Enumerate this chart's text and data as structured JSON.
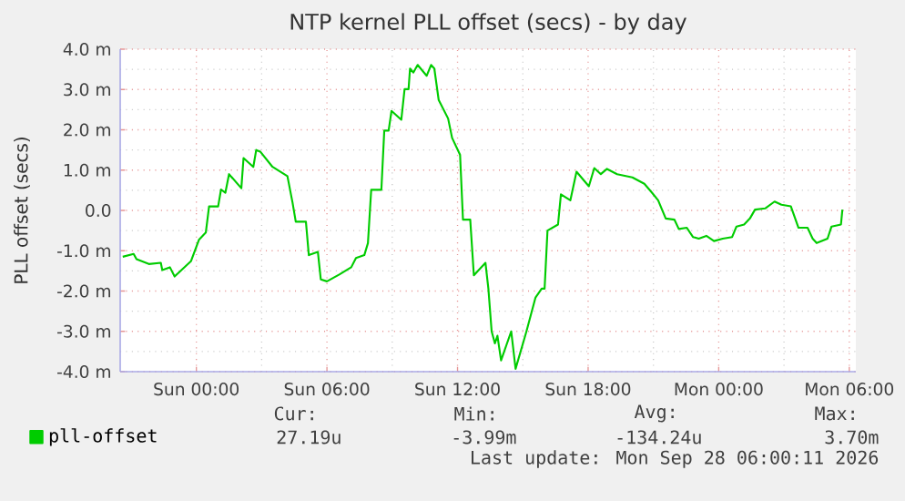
{
  "chart_data": {
    "type": "line",
    "title": "NTP kernel PLL offset (secs) - by day",
    "ylabel": "PLL offset (secs)",
    "xlim": [
      "2026-09-26T20:30",
      "2026-09-28T06:18"
    ],
    "ylim": [
      -4.0,
      4.0
    ],
    "xticks": [
      {
        "value": "2026-09-27T00:00",
        "label": "Sun 00:00"
      },
      {
        "value": "2026-09-27T06:00",
        "label": "Sun 06:00"
      },
      {
        "value": "2026-09-27T12:00",
        "label": "Sun 12:00"
      },
      {
        "value": "2026-09-27T18:00",
        "label": "Sun 18:00"
      },
      {
        "value": "2026-09-28T00:00",
        "label": "Mon 00:00"
      },
      {
        "value": "2026-09-28T06:00",
        "label": "Mon 06:00"
      }
    ],
    "yticks": [
      {
        "value": -4,
        "label": "-4.0 m"
      },
      {
        "value": -3,
        "label": "-3.0 m"
      },
      {
        "value": -2,
        "label": "-2.0 m"
      },
      {
        "value": -1,
        "label": "-1.0 m"
      },
      {
        "value": 0,
        "label": "0.0"
      },
      {
        "value": 1,
        "label": "1.0 m"
      },
      {
        "value": 2,
        "label": "2.0 m"
      },
      {
        "value": 3,
        "label": "3.0 m"
      },
      {
        "value": 4,
        "label": "4.0 m"
      }
    ],
    "grid": true,
    "legend": "bottom",
    "marker": "none",
    "line_style": "solid",
    "series": [
      {
        "name": "pll-offset",
        "color": "#00cc00",
        "x": [
          "2026-09-26T20:37",
          "2026-09-26T21:07",
          "2026-09-26T21:15",
          "2026-09-26T21:49",
          "2026-09-26T22:22",
          "2026-09-26T22:26",
          "2026-09-26T22:47",
          "2026-09-26T23:00",
          "2026-09-26T23:45",
          "2026-09-27T00:07",
          "2026-09-27T00:26",
          "2026-09-27T00:35",
          "2026-09-27T01:00",
          "2026-09-27T01:08",
          "2026-09-27T01:20",
          "2026-09-27T01:30",
          "2026-09-27T02:04",
          "2026-09-27T02:10",
          "2026-09-27T02:37",
          "2026-09-27T02:45",
          "2026-09-27T02:56",
          "2026-09-27T03:30",
          "2026-09-27T04:11",
          "2026-09-27T04:25",
          "2026-09-27T04:34",
          "2026-09-27T05:02",
          "2026-09-27T05:10",
          "2026-09-27T05:35",
          "2026-09-27T05:43",
          "2026-09-27T06:00",
          "2026-09-27T06:34",
          "2026-09-27T07:07",
          "2026-09-27T07:20",
          "2026-09-27T07:43",
          "2026-09-27T07:53",
          "2026-09-27T08:02",
          "2026-09-27T08:30",
          "2026-09-27T08:38",
          "2026-09-27T08:50",
          "2026-09-27T08:58",
          "2026-09-27T09:25",
          "2026-09-27T09:34",
          "2026-09-27T09:45",
          "2026-09-27T09:49",
          "2026-09-27T09:58",
          "2026-09-27T10:10",
          "2026-09-27T10:35",
          "2026-09-27T10:47",
          "2026-09-27T10:56",
          "2026-09-27T11:08",
          "2026-09-27T11:34",
          "2026-09-27T11:45",
          "2026-09-27T12:07",
          "2026-09-27T12:15",
          "2026-09-27T12:35",
          "2026-09-27T12:45",
          "2026-09-27T13:17",
          "2026-09-27T13:25",
          "2026-09-27T13:34",
          "2026-09-27T13:43",
          "2026-09-27T13:50",
          "2026-09-27T14:00",
          "2026-09-27T14:28",
          "2026-09-27T14:40",
          "2026-09-27T15:10",
          "2026-09-27T15:35",
          "2026-09-27T15:52",
          "2026-09-27T16:00",
          "2026-09-27T16:08",
          "2026-09-27T16:37",
          "2026-09-27T16:45",
          "2026-09-27T17:11",
          "2026-09-27T17:28",
          "2026-09-27T18:02",
          "2026-09-27T18:17",
          "2026-09-27T18:35",
          "2026-09-27T18:52",
          "2026-09-27T19:20",
          "2026-09-27T20:02",
          "2026-09-27T20:35",
          "2026-09-27T20:56",
          "2026-09-27T21:13",
          "2026-09-27T21:34",
          "2026-09-27T21:58",
          "2026-09-27T22:10",
          "2026-09-27T22:32",
          "2026-09-27T22:49",
          "2026-09-27T23:05",
          "2026-09-27T23:26",
          "2026-09-27T23:47",
          "2026-09-28T00:11",
          "2026-09-28T00:37",
          "2026-09-28T00:49",
          "2026-09-28T01:10",
          "2026-09-28T01:26",
          "2026-09-28T01:40",
          "2026-09-28T02:08",
          "2026-09-28T02:34",
          "2026-09-28T02:53",
          "2026-09-28T03:19",
          "2026-09-28T03:40",
          "2026-09-28T04:05",
          "2026-09-28T04:19",
          "2026-09-28T04:30",
          "2026-09-28T05:00",
          "2026-09-28T05:11",
          "2026-09-28T05:37",
          "2026-09-28T05:41"
        ],
        "values": [
          -1.15,
          -1.08,
          -1.21,
          -1.33,
          -1.3,
          -1.48,
          -1.41,
          -1.64,
          -1.26,
          -0.73,
          -0.55,
          0.1,
          0.1,
          0.52,
          0.44,
          0.9,
          0.55,
          1.3,
          1.08,
          1.5,
          1.46,
          1.08,
          0.85,
          0.2,
          -0.28,
          -0.28,
          -1.11,
          -1.03,
          -1.71,
          -1.76,
          -1.59,
          -1.41,
          -1.18,
          -1.11,
          -0.81,
          0.51,
          0.51,
          1.98,
          1.98,
          2.47,
          2.25,
          3.01,
          3.01,
          3.52,
          3.42,
          3.61,
          3.34,
          3.61,
          3.52,
          2.74,
          2.28,
          1.8,
          1.38,
          -0.23,
          -0.23,
          -1.61,
          -1.3,
          -1.94,
          -3.0,
          -3.3,
          -3.11,
          -3.72,
          -3.0,
          -3.93,
          -3.0,
          -2.16,
          -1.94,
          -1.94,
          -0.5,
          -0.35,
          0.4,
          0.25,
          0.96,
          0.6,
          1.05,
          0.9,
          1.03,
          0.9,
          0.82,
          0.66,
          0.44,
          0.25,
          -0.2,
          -0.23,
          -0.46,
          -0.43,
          -0.66,
          -0.7,
          -0.63,
          -0.76,
          -0.7,
          -0.66,
          -0.4,
          -0.35,
          -0.2,
          0.02,
          0.05,
          0.22,
          0.14,
          0.1,
          -0.43,
          -0.43,
          -0.7,
          -0.81,
          -0.7,
          -0.4,
          -0.35,
          0.02
        ]
      }
    ],
    "annotations": [
      "Cur:",
      "27.19u",
      "Min:",
      "-3.99m",
      "Avg:",
      "-134.24u",
      "Max:",
      "3.70m",
      "Last update: Mon Sep 28 06:00:11 2026"
    ]
  }
}
